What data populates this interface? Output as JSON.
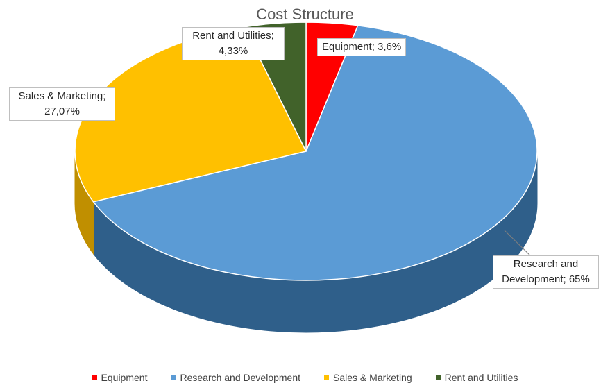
{
  "chart_data": {
    "type": "pie",
    "title": "Cost Structure",
    "slices": [
      {
        "name": "Equipment",
        "value": 3.6,
        "label": "Equipment; 3,6%",
        "color": "#ff0000",
        "side_color": "#b80000"
      },
      {
        "name": "Research and Development",
        "value": 65,
        "label": "Research and Development; 65%",
        "color": "#5b9bd5",
        "side_color": "#2f5f8a"
      },
      {
        "name": "Sales & Marketing",
        "value": 27.07,
        "label": "Sales & Marketing; 27,07%",
        "color": "#ffc000",
        "side_color": "#c08f00"
      },
      {
        "name": "Rent and Utilities",
        "value": 4.33,
        "label": "Rent and Utilities; 4,33%",
        "color": "#41622a",
        "side_color": "#2b4419"
      }
    ],
    "legend_position": "bottom",
    "style": "3d"
  }
}
